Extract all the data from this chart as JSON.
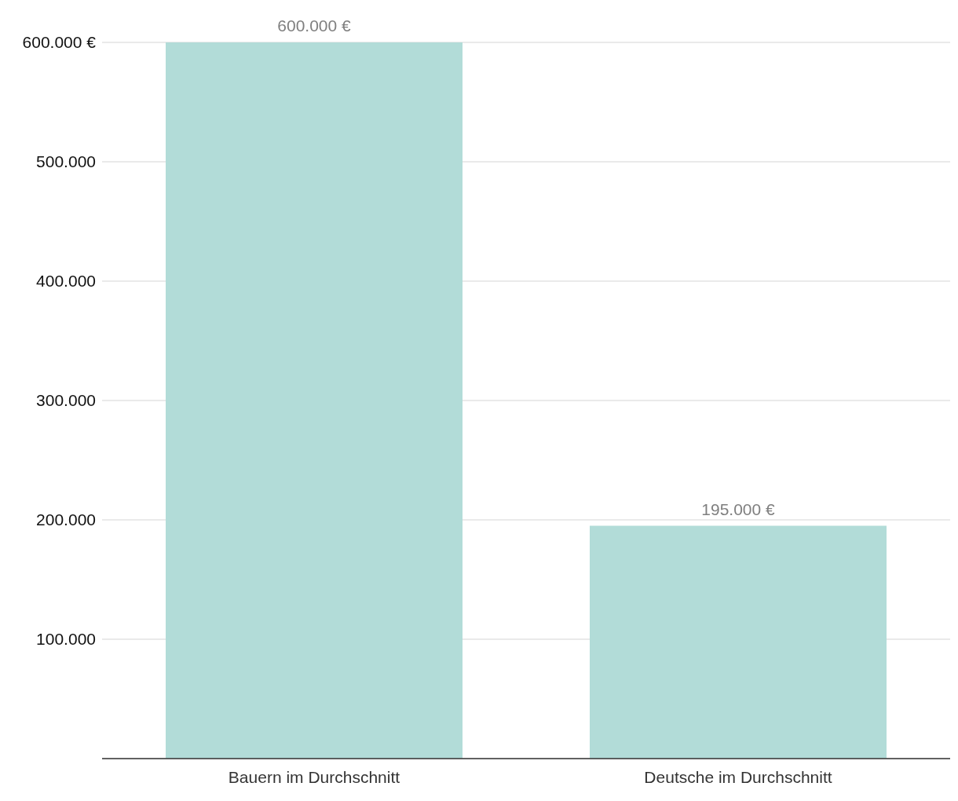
{
  "chart_data": {
    "type": "bar",
    "categories": [
      "Bauern im Durchschnitt",
      "Deutsche im Durchschnitt"
    ],
    "values": [
      600000,
      195000
    ],
    "value_labels": [
      "600.000 €",
      "195.000 €"
    ],
    "color": "#b2dcd8",
    "ylim": [
      0,
      600000
    ],
    "yticks": [
      {
        "value": 100000,
        "label": "100.000"
      },
      {
        "value": 200000,
        "label": "200.000"
      },
      {
        "value": 300000,
        "label": "300.000"
      },
      {
        "value": 400000,
        "label": "400.000"
      },
      {
        "value": 500000,
        "label": "500.000"
      },
      {
        "value": 600000,
        "label": "600.000 €"
      }
    ],
    "grid": "y"
  }
}
